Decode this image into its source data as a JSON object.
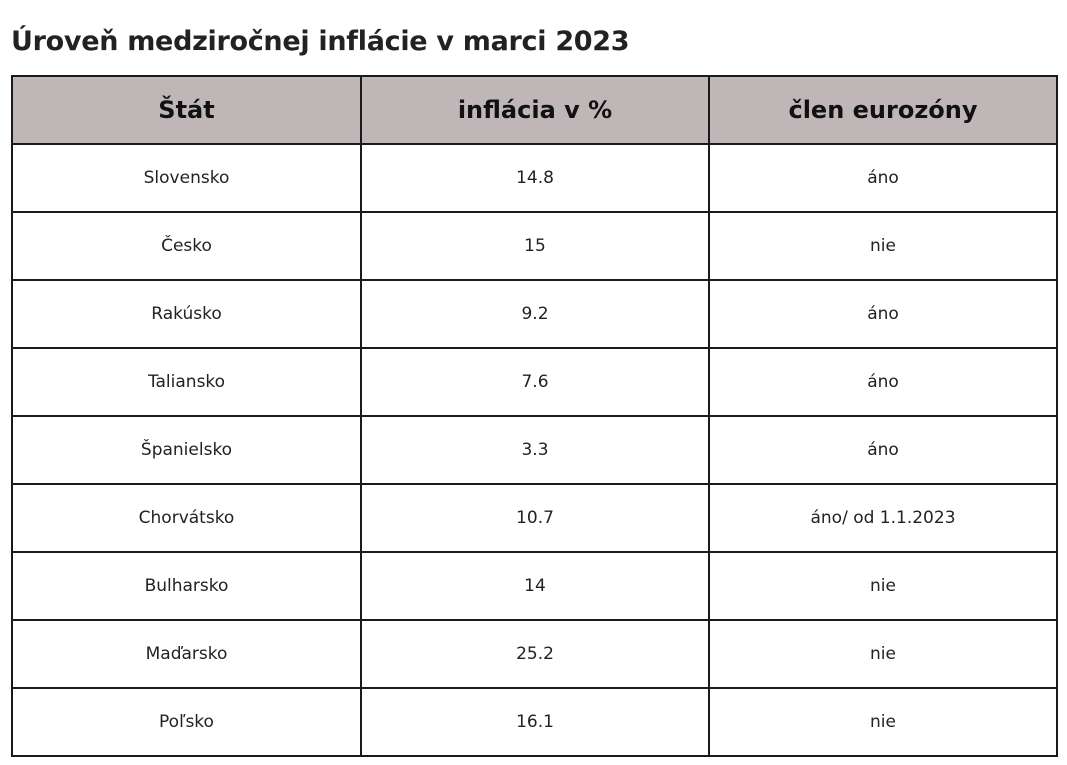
{
  "title": "Úroveň medziročnej inflácie v marci 2023",
  "table": {
    "header_bg": "#bfb7b7",
    "columns": [
      "Štát",
      "inflácia v %",
      "člen eurozóny"
    ],
    "rows": [
      [
        "Slovensko",
        "14.8",
        "áno"
      ],
      [
        "Česko",
        "15",
        "nie"
      ],
      [
        "Rakúsko",
        "9.2",
        "áno"
      ],
      [
        "Taliansko",
        "7.6",
        "áno"
      ],
      [
        "Španielsko",
        "3.3",
        "áno"
      ],
      [
        "Chorvátsko",
        "10.7",
        "áno/ od 1.1.2023"
      ],
      [
        "Bulharsko",
        "14",
        "nie"
      ],
      [
        "Maďarsko",
        "25.2",
        "nie"
      ],
      [
        "Poľsko",
        "16.1",
        "nie"
      ]
    ]
  }
}
